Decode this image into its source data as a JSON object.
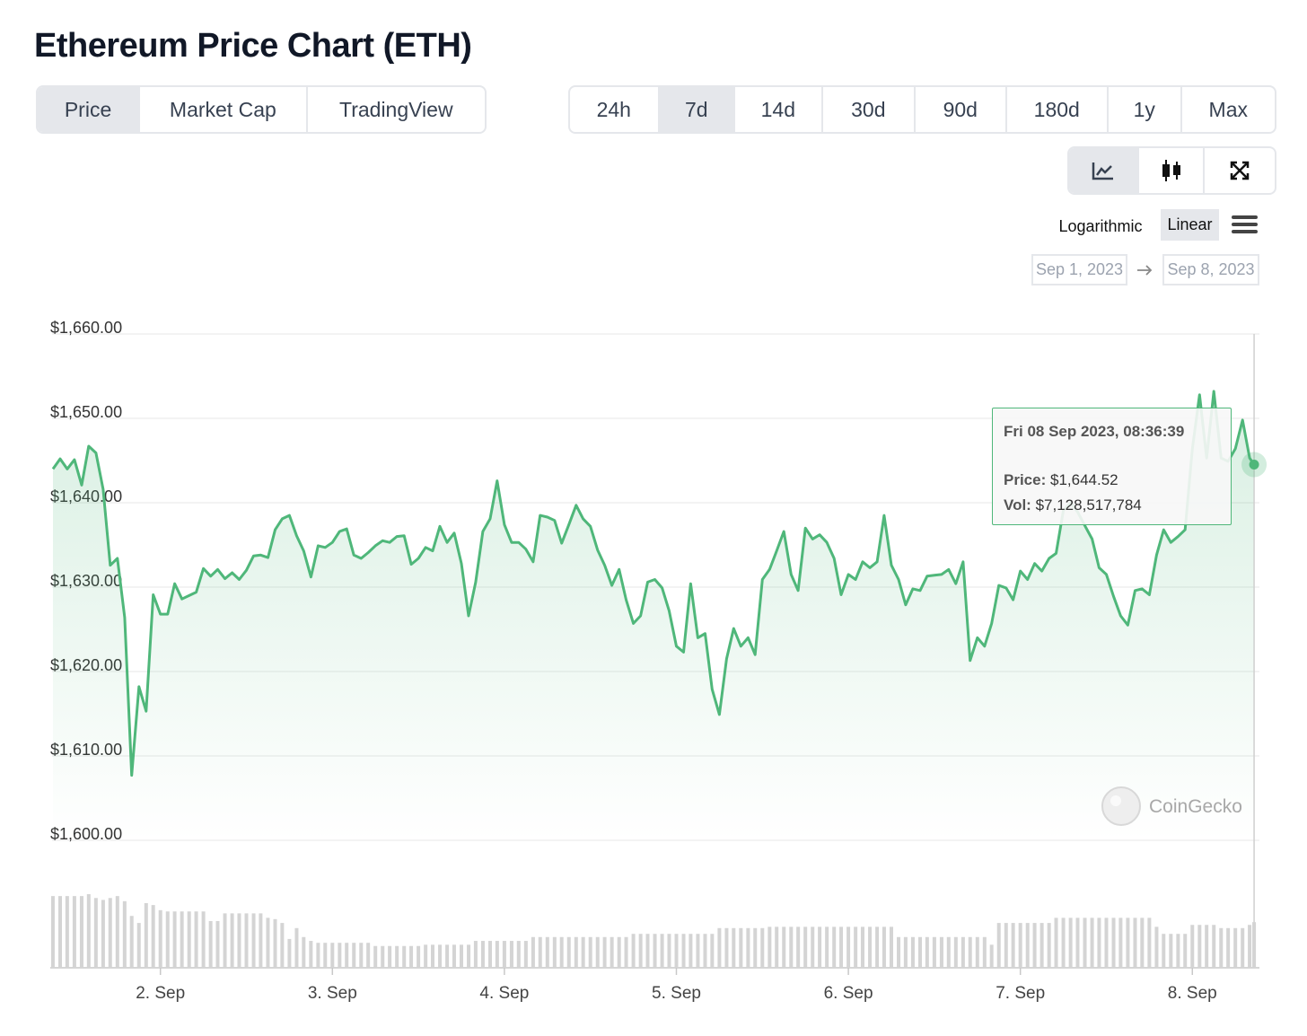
{
  "title": "Ethereum Price Chart (ETH)",
  "tabs": [
    "Price",
    "Market Cap",
    "TradingView"
  ],
  "ranges": [
    "24h",
    "7d",
    "14d",
    "30d",
    "90d",
    "180d",
    "1y",
    "Max"
  ],
  "scale_options": [
    "Logarithmic",
    "Linear"
  ],
  "date_from": "Sep 1, 2023",
  "date_to": "Sep 8, 2023",
  "watermark": "CoinGecko",
  "tooltip": {
    "date": "Fri 08 Sep 2023, 08:36:39",
    "price_label": "Price:",
    "price": "$1,644.52",
    "vol_label": "Vol:",
    "vol": "$7,128,517,784"
  },
  "chart_data": {
    "type": "line",
    "x": [
      1.375,
      1.417,
      1.458,
      1.5,
      1.542,
      1.583,
      1.625,
      1.667,
      1.708,
      1.75,
      1.792,
      1.833,
      1.875,
      1.917,
      1.958,
      2,
      2.042,
      2.083,
      2.125,
      2.167,
      2.208,
      2.25,
      2.292,
      2.333,
      2.375,
      2.417,
      2.458,
      2.5,
      2.542,
      2.583,
      2.625,
      2.667,
      2.708,
      2.75,
      2.792,
      2.833,
      2.875,
      2.917,
      2.958,
      3,
      3.042,
      3.083,
      3.125,
      3.167,
      3.208,
      3.25,
      3.292,
      3.333,
      3.375,
      3.417,
      3.458,
      3.5,
      3.542,
      3.583,
      3.625,
      3.667,
      3.708,
      3.75,
      3.792,
      3.833,
      3.875,
      3.917,
      3.958,
      4,
      4.042,
      4.083,
      4.125,
      4.167,
      4.208,
      4.25,
      4.292,
      4.333,
      4.375,
      4.417,
      4.458,
      4.5,
      4.542,
      4.583,
      4.625,
      4.667,
      4.708,
      4.75,
      4.792,
      4.833,
      4.875,
      4.917,
      4.958,
      5,
      5.042,
      5.083,
      5.125,
      5.167,
      5.208,
      5.25,
      5.292,
      5.333,
      5.375,
      5.417,
      5.458,
      5.5,
      5.542,
      5.583,
      5.625,
      5.667,
      5.708,
      5.75,
      5.792,
      5.833,
      5.875,
      5.917,
      5.958,
      6,
      6.042,
      6.083,
      6.125,
      6.167,
      6.208,
      6.25,
      6.292,
      6.333,
      6.375,
      6.417,
      6.458,
      6.5,
      6.542,
      6.583,
      6.625,
      6.667,
      6.708,
      6.75,
      6.792,
      6.833,
      6.875,
      6.917,
      6.958,
      7,
      7.042,
      7.083,
      7.125,
      7.167,
      7.208,
      7.25,
      7.292,
      7.333,
      7.375,
      7.417,
      7.458,
      7.5,
      7.542,
      7.583,
      7.625,
      7.667,
      7.708,
      7.75,
      7.792,
      7.833,
      7.875,
      7.917,
      7.958,
      8,
      8.042,
      8.083,
      8.125,
      8.167,
      8.208,
      8.25,
      8.292,
      8.333,
      8.359
    ],
    "series": [
      {
        "color": "#4fb77a",
        "values": [
          1644.0,
          1645.2,
          1644.0,
          1645.1,
          1642.1,
          1646.7,
          1645.9,
          1641.6,
          1632.6,
          1633.4,
          1626.4,
          1607.7,
          1618.2,
          1615.3,
          1629.1,
          1626.8,
          1626.8,
          1630.4,
          1628.6,
          1629.0,
          1629.4,
          1632.2,
          1631.3,
          1632.1,
          1631.0,
          1631.7,
          1630.9,
          1632.0,
          1633.7,
          1633.8,
          1633.5,
          1636.8,
          1638.1,
          1638.5,
          1636.1,
          1634.3,
          1631.2,
          1634.9,
          1634.7,
          1635.3,
          1636.6,
          1636.9,
          1633.8,
          1633.4,
          1634.1,
          1634.9,
          1635.5,
          1635.3,
          1636.0,
          1636.1,
          1632.7,
          1633.4,
          1634.7,
          1634.3,
          1637.2,
          1635.3,
          1636.4,
          1632.8,
          1626.6,
          1630.6,
          1636.6,
          1638.1,
          1642.6,
          1637.4,
          1635.3,
          1635.3,
          1634.5,
          1633.0,
          1638.5,
          1638.3,
          1637.9,
          1635.2,
          1637.4,
          1639.7,
          1638.1,
          1637.2,
          1634.4,
          1632.6,
          1630.2,
          1632.1,
          1628.5,
          1625.7,
          1626.6,
          1630.6,
          1630.9,
          1629.9,
          1627.2,
          1623.0,
          1622.3,
          1630.4,
          1624.0,
          1624.5,
          1617.9,
          1614.9,
          1621.5,
          1625.1,
          1623.0,
          1624.0,
          1622.0,
          1630.9,
          1632.1,
          1634.3,
          1636.6,
          1631.5,
          1629.6,
          1637.0,
          1635.7,
          1636.2,
          1635.3,
          1633.4,
          1629.1,
          1631.5,
          1630.9,
          1633.0,
          1632.3,
          1633.0,
          1638.5,
          1632.6,
          1630.9,
          1627.9,
          1629.8,
          1629.6,
          1631.3,
          1631.4,
          1631.5,
          1632.1,
          1630.4,
          1633.0,
          1621.3,
          1624.0,
          1623.0,
          1625.7,
          1630.2,
          1629.9,
          1628.5,
          1631.9,
          1630.9,
          1632.8,
          1631.9,
          1633.4,
          1634.0,
          1639.1,
          1640.0,
          1638.9,
          1637.3,
          1635.7,
          1632.3,
          1631.5,
          1628.9,
          1626.6,
          1625.5,
          1629.6,
          1629.8,
          1629.1,
          1633.8,
          1636.8,
          1635.3,
          1636.0,
          1636.8,
          1646.4,
          1652.8,
          1645.3,
          1653.2,
          1645.3,
          1644.9,
          1646.4,
          1649.8,
          1645.3,
          1644.52
        ]
      },
      {
        "type": "bar",
        "color": "#d4d4d4",
        "values": [
          11200000000.0,
          11200000000.0,
          11200000000.0,
          11200000000.0,
          11200000000.0,
          11500000000.0,
          10900000000.0,
          10600000000.0,
          10900000000.0,
          11200000000.0,
          10400000000.0,
          8100000000.0,
          7000000000.0,
          10100000000.0,
          9800000000.0,
          9000000000.0,
          8800000000.0,
          8800000000.0,
          8800000000.0,
          8800000000.0,
          8800000000.0,
          8800000000.0,
          7300000000.0,
          7300000000.0,
          8500000000.0,
          8500000000.0,
          8500000000.0,
          8500000000.0,
          8500000000.0,
          8500000000.0,
          7800000000.0,
          7600000000.0,
          7000000000.0,
          4500000000.0,
          6200000000.0,
          4800000000.0,
          4200000000.0,
          3900000000.0,
          3900000000.0,
          3900000000.0,
          3900000000.0,
          3900000000.0,
          3900000000.0,
          3900000000.0,
          3900000000.0,
          3400000000.0,
          3400000000.0,
          3400000000.0,
          3400000000.0,
          3400000000.0,
          3400000000.0,
          3400000000.0,
          3600000000.0,
          3600000000.0,
          3600000000.0,
          3600000000.0,
          3600000000.0,
          3600000000.0,
          3600000000.0,
          4200000000.0,
          4200000000.0,
          4200000000.0,
          4200000000.0,
          4200000000.0,
          4200000000.0,
          4200000000.0,
          4200000000.0,
          4800000000.0,
          4800000000.0,
          4800000000.0,
          4800000000.0,
          4800000000.0,
          4800000000.0,
          4800000000.0,
          4800000000.0,
          4800000000.0,
          4800000000.0,
          4800000000.0,
          4800000000.0,
          4800000000.0,
          4800000000.0,
          5300000000.0,
          5300000000.0,
          5300000000.0,
          5300000000.0,
          5300000000.0,
          5300000000.0,
          5300000000.0,
          5300000000.0,
          5300000000.0,
          5300000000.0,
          5300000000.0,
          5300000000.0,
          6200000000.0,
          6200000000.0,
          6200000000.0,
          6200000000.0,
          6200000000.0,
          6200000000.0,
          6200000000.0,
          6400000000.0,
          6400000000.0,
          6400000000.0,
          6400000000.0,
          6400000000.0,
          6400000000.0,
          6400000000.0,
          6400000000.0,
          6400000000.0,
          6400000000.0,
          6400000000.0,
          6400000000.0,
          6400000000.0,
          6400000000.0,
          6400000000.0,
          6400000000.0,
          6400000000.0,
          6400000000.0,
          4800000000.0,
          4800000000.0,
          4800000000.0,
          4800000000.0,
          4800000000.0,
          4800000000.0,
          4800000000.0,
          4800000000.0,
          4800000000.0,
          4800000000.0,
          4800000000.0,
          4800000000.0,
          4800000000.0,
          3600000000.0,
          7000000000.0,
          7000000000.0,
          7000000000.0,
          7000000000.0,
          7000000000.0,
          7000000000.0,
          7000000000.0,
          7000000000.0,
          7800000000.0,
          7800000000.0,
          7800000000.0,
          7800000000.0,
          7800000000.0,
          7800000000.0,
          7800000000.0,
          7800000000.0,
          7800000000.0,
          7800000000.0,
          7800000000.0,
          7800000000.0,
          7800000000.0,
          7800000000.0,
          6400000000.0,
          5300000000.0,
          5300000000.0,
          5300000000.0,
          5300000000.0,
          6700000000.0,
          6700000000.0,
          6700000000.0,
          6700000000.0,
          6200000000.0,
          6200000000.0,
          6200000000.0,
          6200000000.0,
          6700000000.0,
          7128517784
        ]
      }
    ],
    "xlim": [
      1.37,
      8.39
    ],
    "xticks": [
      {
        "value": 2,
        "label": "2. Sep"
      },
      {
        "value": 3,
        "label": "3. Sep"
      },
      {
        "value": 4,
        "label": "4. Sep"
      },
      {
        "value": 5,
        "label": "5. Sep"
      },
      {
        "value": 6,
        "label": "6. Sep"
      },
      {
        "value": 7,
        "label": "7. Sep"
      },
      {
        "value": 8,
        "label": "8. Sep"
      }
    ],
    "ylim": [
      1600,
      1660
    ],
    "yticks": [
      {
        "value": 1600,
        "label": "$1,600.00"
      },
      {
        "value": 1610,
        "label": "$1,610.00"
      },
      {
        "value": 1620,
        "label": "$1,620.00"
      },
      {
        "value": 1630,
        "label": "$1,630.00"
      },
      {
        "value": 1640,
        "label": "$1,640.00"
      },
      {
        "value": 1650,
        "label": "$1,650.00"
      },
      {
        "value": 1660,
        "label": "$1,660.00"
      }
    ],
    "grid": true,
    "log_scale": false
  }
}
